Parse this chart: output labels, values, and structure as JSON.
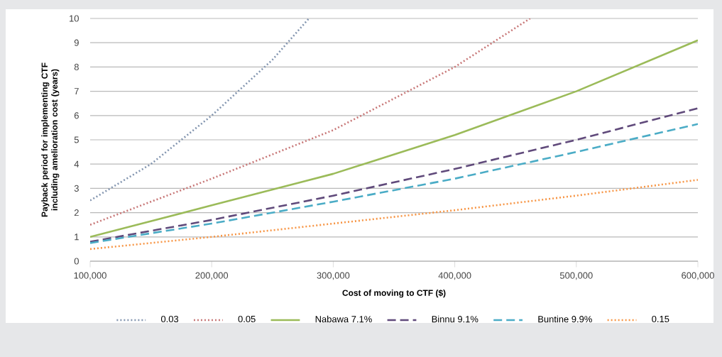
{
  "chart_data": {
    "type": "line",
    "xlabel": "Cost of moving to CTF ($)",
    "ylabel": "Payback period for implementing CTF including amelioration cost (years)",
    "xlim": [
      100000,
      600000
    ],
    "ylim": [
      0,
      10
    ],
    "xticks": [
      {
        "value": 100000,
        "label": "100,000"
      },
      {
        "value": 200000,
        "label": "200,000"
      },
      {
        "value": 300000,
        "label": "300,000"
      },
      {
        "value": 400000,
        "label": "400,000"
      },
      {
        "value": 500000,
        "label": "500,000"
      },
      {
        "value": 600000,
        "label": "600,000"
      }
    ],
    "yticks": [
      0,
      1,
      2,
      3,
      4,
      5,
      6,
      7,
      8,
      9,
      10
    ],
    "grid": "y",
    "legend": "bottom",
    "marker": "none",
    "series": [
      {
        "name": "0.03",
        "color": "#8496b0",
        "line_style": "dotted",
        "x": [
          100000,
          150000,
          200000,
          250000,
          280000
        ],
        "values": [
          2.5,
          4.0,
          6.0,
          8.3,
          10
        ]
      },
      {
        "name": "0.05",
        "color": "#c87878",
        "line_style": "dotted",
        "x": [
          100000,
          200000,
          300000,
          400000,
          462000
        ],
        "values": [
          1.5,
          3.4,
          5.4,
          8.0,
          10
        ]
      },
      {
        "name": "Nabawa 7.1%",
        "color": "#9bbb59",
        "line_style": "solid",
        "x": [
          100000,
          200000,
          300000,
          400000,
          500000,
          600000
        ],
        "values": [
          1.0,
          2.3,
          3.6,
          5.2,
          7.0,
          9.1
        ]
      },
      {
        "name": "Binnu 9.1%",
        "color": "#604a7b",
        "line_style": "dashed",
        "x": [
          100000,
          200000,
          300000,
          400000,
          500000,
          600000
        ],
        "values": [
          0.8,
          1.7,
          2.7,
          3.8,
          5.0,
          6.3
        ]
      },
      {
        "name": "Buntine 9.9%",
        "color": "#4bacc6",
        "line_style": "dashed",
        "x": [
          100000,
          200000,
          300000,
          400000,
          500000,
          600000
        ],
        "values": [
          0.75,
          1.55,
          2.45,
          3.4,
          4.5,
          5.65
        ]
      },
      {
        "name": "0.15",
        "color": "#f79646",
        "line_style": "dotted",
        "x": [
          100000,
          200000,
          300000,
          400000,
          500000,
          600000
        ],
        "values": [
          0.5,
          1.0,
          1.55,
          2.1,
          2.7,
          3.35
        ]
      }
    ]
  }
}
